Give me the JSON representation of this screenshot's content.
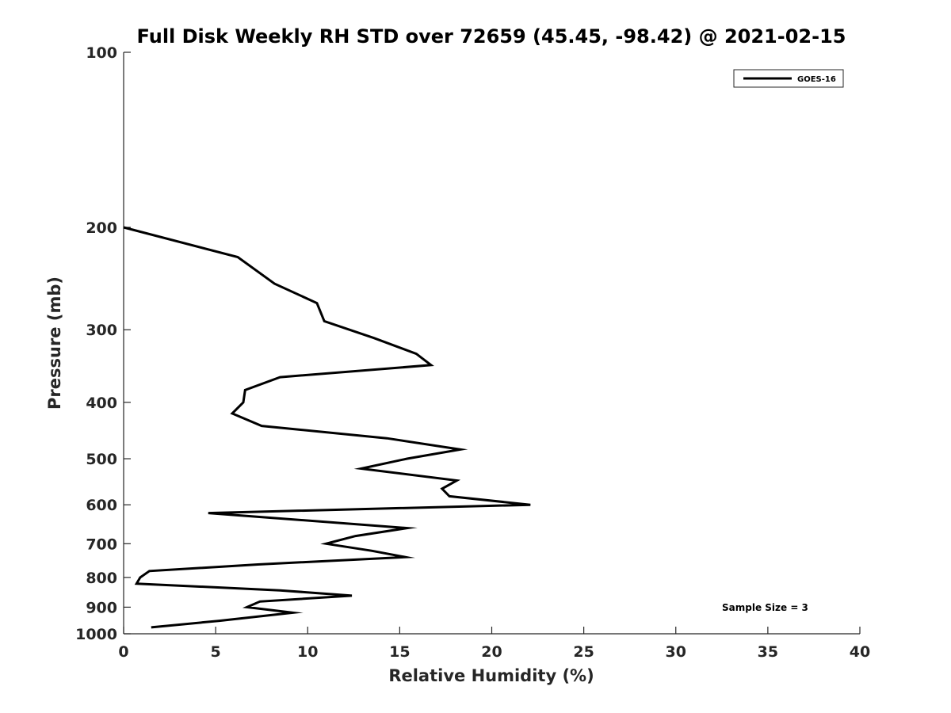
{
  "chart_data": {
    "type": "line",
    "title": "Full Disk Weekly RH STD over 72659 (45.45, -98.42) @ 2021-02-15",
    "xlabel": "Relative Humidity (%)",
    "ylabel": "Pressure (mb)",
    "xlim": [
      0,
      40
    ],
    "ylim": [
      100,
      1000
    ],
    "yscale": "log",
    "y_reversed": true,
    "x_ticks": [
      0,
      5,
      10,
      15,
      20,
      25,
      30,
      35,
      40
    ],
    "x_tick_labels": [
      "0",
      "5",
      "10",
      "15",
      "20",
      "25",
      "30",
      "35",
      "40"
    ],
    "y_ticks": [
      100,
      200,
      300,
      400,
      500,
      600,
      700,
      800,
      900,
      1000
    ],
    "y_tick_labels": [
      "100",
      "200",
      "300",
      "400",
      "500",
      "600",
      "700",
      "800",
      "900",
      "1000"
    ],
    "grid": false,
    "legend_position": "top-right",
    "annotation": "Sample Size = 3",
    "series": [
      {
        "name": "GOES-16",
        "color": "#000000",
        "points": [
          {
            "x": 0.0,
            "y": 200
          },
          {
            "x": 6.2,
            "y": 225
          },
          {
            "x": 8.2,
            "y": 250
          },
          {
            "x": 10.5,
            "y": 270
          },
          {
            "x": 10.9,
            "y": 290
          },
          {
            "x": 13.6,
            "y": 310
          },
          {
            "x": 15.9,
            "y": 330
          },
          {
            "x": 16.7,
            "y": 345
          },
          {
            "x": 8.5,
            "y": 362
          },
          {
            "x": 6.6,
            "y": 381
          },
          {
            "x": 6.5,
            "y": 400
          },
          {
            "x": 5.9,
            "y": 418
          },
          {
            "x": 7.5,
            "y": 439
          },
          {
            "x": 14.3,
            "y": 461
          },
          {
            "x": 18.3,
            "y": 482
          },
          {
            "x": 15.4,
            "y": 500
          },
          {
            "x": 12.9,
            "y": 520
          },
          {
            "x": 18.1,
            "y": 545
          },
          {
            "x": 17.3,
            "y": 563
          },
          {
            "x": 17.7,
            "y": 580
          },
          {
            "x": 22.1,
            "y": 600
          },
          {
            "x": 4.6,
            "y": 620
          },
          {
            "x": 15.4,
            "y": 658
          },
          {
            "x": 12.6,
            "y": 679
          },
          {
            "x": 11.0,
            "y": 700
          },
          {
            "x": 13.5,
            "y": 720
          },
          {
            "x": 15.3,
            "y": 738
          },
          {
            "x": 7.3,
            "y": 760
          },
          {
            "x": 1.4,
            "y": 780
          },
          {
            "x": 0.9,
            "y": 800
          },
          {
            "x": 0.7,
            "y": 820
          },
          {
            "x": 8.5,
            "y": 842
          },
          {
            "x": 12.4,
            "y": 860
          },
          {
            "x": 7.4,
            "y": 880
          },
          {
            "x": 6.7,
            "y": 900
          },
          {
            "x": 9.2,
            "y": 920
          },
          {
            "x": 5.2,
            "y": 950
          },
          {
            "x": 1.5,
            "y": 975
          }
        ]
      }
    ]
  }
}
